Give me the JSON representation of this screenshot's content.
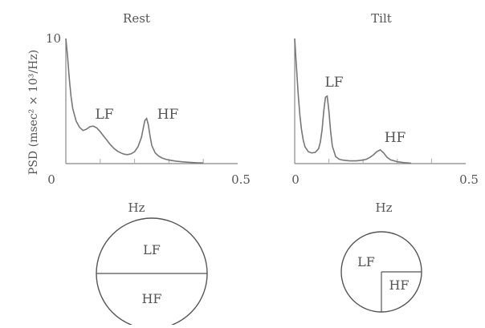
{
  "y_axis_label": "PSD (msec² × 10³/Hz)",
  "chart_data": [
    {
      "type": "line",
      "title": "Rest",
      "xlabel": "Hz",
      "ylabel": "PSD (msec² × 10³/Hz)",
      "xlim": [
        0,
        0.5
      ],
      "ylim": [
        0,
        10
      ],
      "x_tick_labels": [
        "0",
        "0.5"
      ],
      "y_tick_labels": [
        "10"
      ],
      "annotations": [
        {
          "text": "LF",
          "x": 0.1,
          "y": 2.9
        },
        {
          "text": "HF",
          "x": 0.25,
          "y": 3.7
        }
      ],
      "series": [
        {
          "x": [
            0.0,
            0.005,
            0.01,
            0.015,
            0.02,
            0.03,
            0.04,
            0.05,
            0.06,
            0.07,
            0.08,
            0.09,
            0.1,
            0.11,
            0.12,
            0.13,
            0.14,
            0.15,
            0.16,
            0.17,
            0.18,
            0.19,
            0.2,
            0.21,
            0.22,
            0.225,
            0.23,
            0.235,
            0.24,
            0.245,
            0.25,
            0.26,
            0.27,
            0.28,
            0.29,
            0.3,
            0.32,
            0.34,
            0.36,
            0.38,
            0.4
          ],
          "y": [
            10.0,
            8.6,
            6.8,
            5.4,
            4.4,
            3.4,
            2.9,
            2.65,
            2.75,
            2.95,
            3.0,
            2.85,
            2.55,
            2.2,
            1.85,
            1.5,
            1.22,
            1.0,
            0.85,
            0.75,
            0.72,
            0.78,
            0.95,
            1.35,
            2.1,
            2.8,
            3.45,
            3.6,
            3.1,
            2.2,
            1.45,
            0.85,
            0.6,
            0.45,
            0.35,
            0.28,
            0.2,
            0.14,
            0.1,
            0.07,
            0.05
          ]
        }
      ]
    },
    {
      "type": "line",
      "title": "Tilt",
      "xlabel": "Hz",
      "ylabel": "",
      "xlim": [
        0,
        0.5
      ],
      "ylim": [
        0,
        10
      ],
      "x_tick_labels": [
        "0",
        "0.5"
      ],
      "y_tick_labels": [],
      "annotations": [
        {
          "text": "LF",
          "x": 0.09,
          "y": 6.1
        },
        {
          "text": "HF",
          "x": 0.25,
          "y": 1.4
        }
      ],
      "series": [
        {
          "x": [
            0.0,
            0.005,
            0.01,
            0.015,
            0.02,
            0.025,
            0.03,
            0.04,
            0.05,
            0.06,
            0.07,
            0.075,
            0.08,
            0.085,
            0.09,
            0.095,
            0.1,
            0.105,
            0.11,
            0.12,
            0.13,
            0.14,
            0.16,
            0.18,
            0.2,
            0.21,
            0.22,
            0.23,
            0.24,
            0.25,
            0.26,
            0.27,
            0.28,
            0.3,
            0.32,
            0.34
          ],
          "y": [
            10.0,
            7.8,
            5.6,
            3.9,
            2.7,
            1.9,
            1.35,
            0.95,
            0.85,
            0.9,
            1.2,
            1.7,
            2.7,
            4.2,
            5.3,
            5.4,
            4.2,
            2.6,
            1.4,
            0.55,
            0.35,
            0.28,
            0.22,
            0.22,
            0.28,
            0.35,
            0.5,
            0.7,
            0.95,
            1.1,
            0.85,
            0.5,
            0.3,
            0.15,
            0.08,
            0.04
          ]
        }
      ]
    },
    {
      "type": "pie",
      "panel": "Rest",
      "slices": [
        {
          "label": "LF",
          "value": 0.5
        },
        {
          "label": "HF",
          "value": 0.5
        }
      ]
    },
    {
      "type": "pie",
      "panel": "Tilt",
      "slices": [
        {
          "label": "LF",
          "value": 0.75
        },
        {
          "label": "HF",
          "value": 0.25
        }
      ]
    }
  ]
}
